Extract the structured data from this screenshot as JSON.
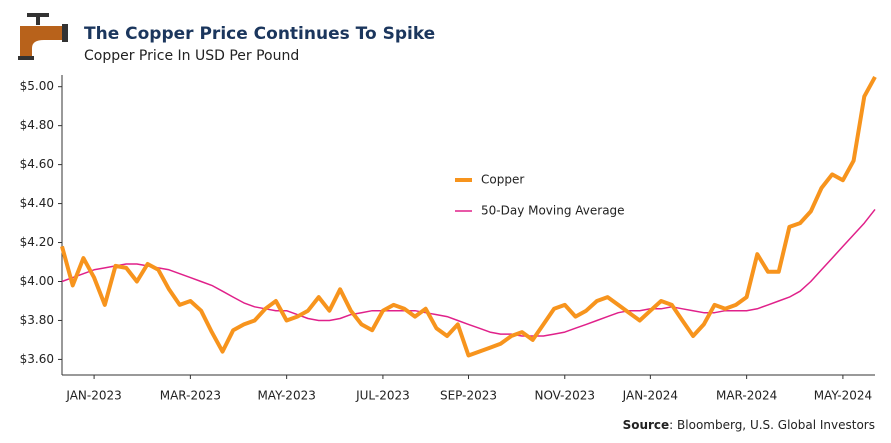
{
  "chart_data": {
    "type": "line",
    "title": "The Copper Price Continues To Spike",
    "subtitle": "Copper Price In USD Per Pound",
    "source": {
      "label": "Source",
      "text": ": Bloomberg, U.S. Global Investors"
    },
    "categories": [
      null,
      null,
      null,
      "JAN-2023",
      null,
      null,
      null,
      null,
      null,
      null,
      null,
      null,
      "MAR-2023",
      null,
      null,
      null,
      null,
      null,
      null,
      null,
      null,
      "MAY-2023",
      null,
      null,
      null,
      null,
      null,
      null,
      null,
      null,
      "JUL-2023",
      null,
      null,
      null,
      null,
      null,
      null,
      null,
      "SEP-2023",
      null,
      null,
      null,
      null,
      null,
      null,
      null,
      null,
      "NOV-2023",
      null,
      null,
      null,
      null,
      null,
      null,
      null,
      "JAN-2024",
      null,
      null,
      null,
      null,
      null,
      null,
      null,
      null,
      "MAR-2024",
      null,
      null,
      null,
      null,
      null,
      null,
      null,
      null,
      "MAY-2024",
      null,
      null,
      null
    ],
    "series": [
      {
        "name": "Copper",
        "color": "#f7941d",
        "width": 4,
        "values": [
          4.18,
          3.98,
          4.12,
          4.02,
          3.88,
          4.08,
          4.07,
          4.0,
          4.09,
          4.06,
          3.96,
          3.88,
          3.9,
          3.85,
          3.74,
          3.64,
          3.75,
          3.78,
          3.8,
          3.86,
          3.9,
          3.8,
          3.82,
          3.85,
          3.92,
          3.85,
          3.96,
          3.85,
          3.78,
          3.75,
          3.85,
          3.88,
          3.86,
          3.82,
          3.86,
          3.76,
          3.72,
          3.78,
          3.62,
          3.64,
          3.66,
          3.68,
          3.72,
          3.74,
          3.7,
          3.78,
          3.86,
          3.88,
          3.82,
          3.85,
          3.9,
          3.92,
          3.88,
          3.84,
          3.8,
          3.85,
          3.9,
          3.88,
          3.8,
          3.72,
          3.78,
          3.88,
          3.86,
          3.88,
          3.92,
          4.14,
          4.05,
          4.05,
          4.28,
          4.3,
          4.36,
          4.48,
          4.55,
          4.52,
          4.62,
          4.95,
          5.05
        ]
      },
      {
        "name": "50-Day Moving Average",
        "color": "#e0218a",
        "width": 1.5,
        "values": [
          4.0,
          4.02,
          4.04,
          4.06,
          4.07,
          4.08,
          4.09,
          4.09,
          4.08,
          4.07,
          4.06,
          4.04,
          4.02,
          4.0,
          3.98,
          3.95,
          3.92,
          3.89,
          3.87,
          3.86,
          3.85,
          3.85,
          3.83,
          3.81,
          3.8,
          3.8,
          3.81,
          3.83,
          3.84,
          3.85,
          3.85,
          3.85,
          3.85,
          3.85,
          3.84,
          3.83,
          3.82,
          3.8,
          3.78,
          3.76,
          3.74,
          3.73,
          3.73,
          3.72,
          3.72,
          3.72,
          3.73,
          3.74,
          3.76,
          3.78,
          3.8,
          3.82,
          3.84,
          3.85,
          3.85,
          3.86,
          3.86,
          3.87,
          3.86,
          3.85,
          3.84,
          3.84,
          3.85,
          3.85,
          3.85,
          3.86,
          3.88,
          3.9,
          3.92,
          3.95,
          4.0,
          4.06,
          4.12,
          4.18,
          4.24,
          4.3,
          4.37
        ]
      }
    ],
    "ylim": [
      3.52,
      5.06
    ],
    "yticks": [
      {
        "value": 3.6,
        "label": "$3.60"
      },
      {
        "value": 3.8,
        "label": "$3.80"
      },
      {
        "value": 4.0,
        "label": "$4.00"
      },
      {
        "value": 4.2,
        "label": "$4.20"
      },
      {
        "value": 4.4,
        "label": "$4.40"
      },
      {
        "value": 4.6,
        "label": "$4.60"
      },
      {
        "value": 4.8,
        "label": "$4.80"
      },
      {
        "value": 5.0,
        "label": "$5.00"
      }
    ],
    "grid": false
  }
}
